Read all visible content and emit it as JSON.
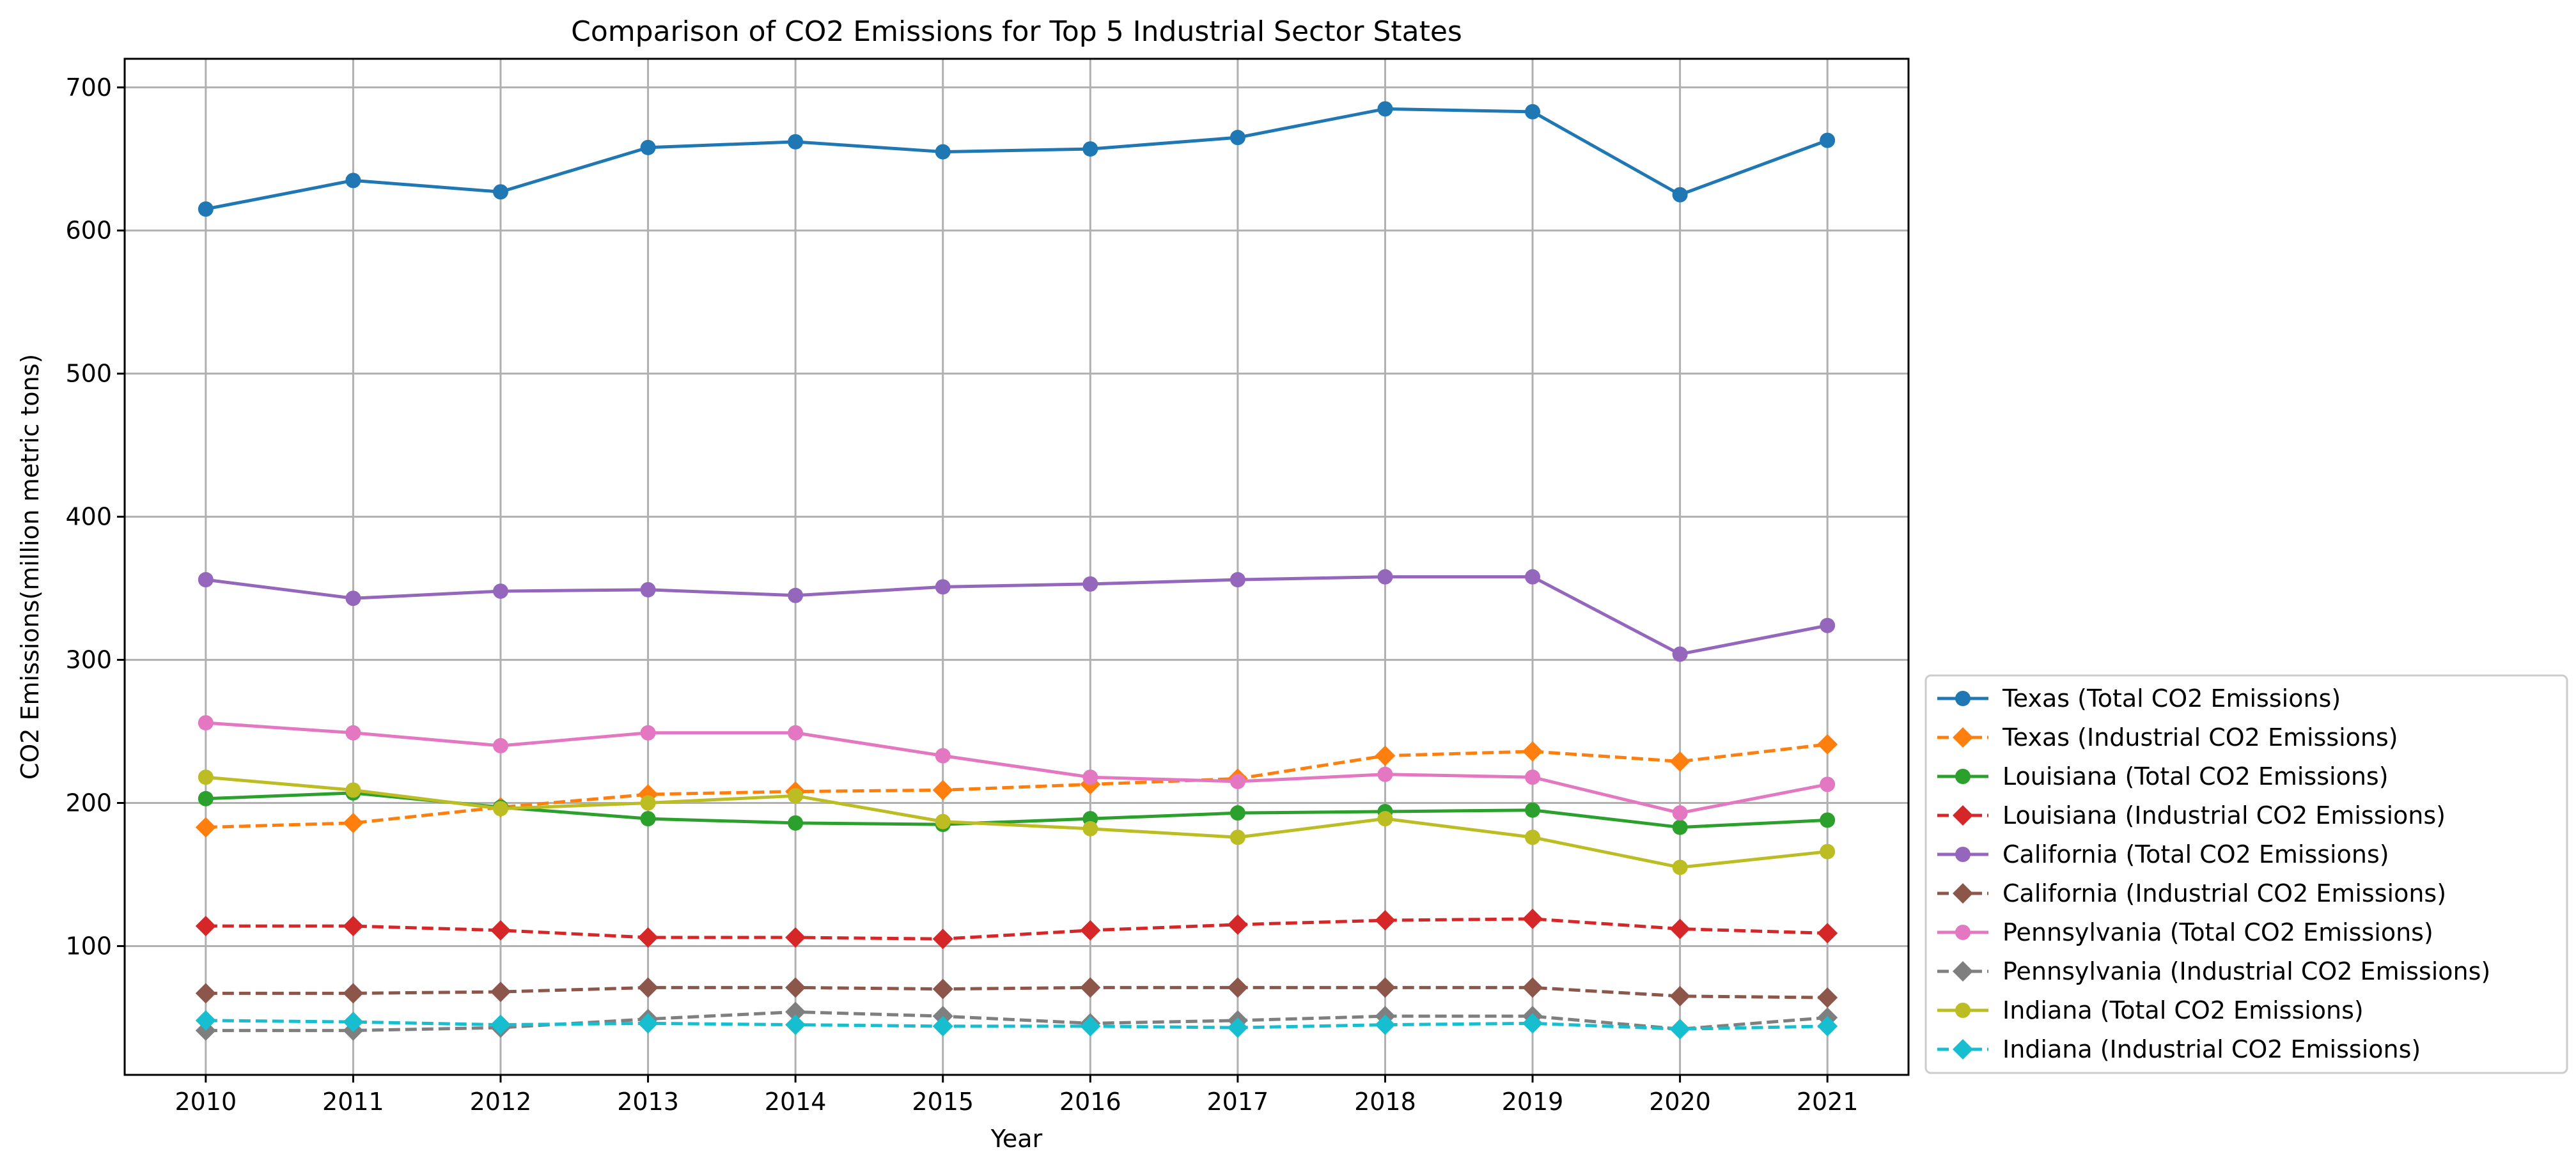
{
  "chart_data": {
    "type": "line",
    "title": "Comparison of CO2 Emissions for Top 5 Industrial Sector States",
    "xlabel": "Year",
    "ylabel": "CO2 Emissions(million metric tons)",
    "x": [
      2010,
      2011,
      2012,
      2013,
      2014,
      2015,
      2016,
      2017,
      2018,
      2019,
      2020,
      2021
    ],
    "xlim": [
      2009.45,
      2021.55
    ],
    "ylim": [
      10,
      720
    ],
    "yticks": [
      100,
      200,
      300,
      400,
      500,
      600,
      700
    ],
    "grid": true,
    "legend_position": "lower-right outside",
    "series": [
      {
        "name": "Texas (Total CO2 Emissions)",
        "color": "#1f77b4",
        "style": "solid",
        "marker": "circle",
        "values": [
          615,
          635,
          627,
          658,
          662,
          655,
          657,
          665,
          685,
          683,
          625,
          663
        ]
      },
      {
        "name": "Texas (Industrial CO2 Emissions)",
        "color": "#ff7f0e",
        "style": "dashed",
        "marker": "diamond",
        "values": [
          183,
          186,
          197,
          206,
          208,
          209,
          213,
          217,
          233,
          236,
          229,
          241
        ]
      },
      {
        "name": "Louisiana (Total CO2 Emissions)",
        "color": "#2ca02c",
        "style": "solid",
        "marker": "circle",
        "values": [
          203,
          207,
          197,
          189,
          186,
          185,
          189,
          193,
          194,
          195,
          183,
          188
        ]
      },
      {
        "name": "Louisiana (Industrial CO2 Emissions)",
        "color": "#d62728",
        "style": "dashed",
        "marker": "diamond",
        "values": [
          114,
          114,
          111,
          106,
          106,
          105,
          111,
          115,
          118,
          119,
          112,
          109
        ]
      },
      {
        "name": "California (Total CO2 Emissions)",
        "color": "#9467bd",
        "style": "solid",
        "marker": "circle",
        "values": [
          356,
          343,
          348,
          349,
          345,
          351,
          353,
          356,
          358,
          358,
          304,
          324
        ]
      },
      {
        "name": "California (Industrial CO2 Emissions)",
        "color": "#8c564b",
        "style": "dashed",
        "marker": "diamond",
        "values": [
          67,
          67,
          68,
          71,
          71,
          70,
          71,
          71,
          71,
          71,
          65,
          64
        ]
      },
      {
        "name": "Pennsylvania (Total CO2 Emissions)",
        "color": "#e377c2",
        "style": "solid",
        "marker": "circle",
        "values": [
          256,
          249,
          240,
          249,
          249,
          233,
          218,
          215,
          220,
          218,
          193,
          213
        ]
      },
      {
        "name": "Pennsylvania (Industrial CO2 Emissions)",
        "color": "#7f7f7f",
        "style": "dashed",
        "marker": "diamond",
        "values": [
          41,
          41,
          43,
          49,
          54,
          51,
          46,
          48,
          51,
          51,
          42,
          50
        ]
      },
      {
        "name": "Indiana (Total CO2 Emissions)",
        "color": "#bcbd22",
        "style": "solid",
        "marker": "circle",
        "values": [
          218,
          209,
          196,
          200,
          205,
          187,
          182,
          176,
          189,
          176,
          155,
          166
        ]
      },
      {
        "name": "Indiana (Industrial CO2 Emissions)",
        "color": "#17becf",
        "style": "dashed",
        "marker": "diamond",
        "values": [
          48,
          47,
          45,
          46,
          45,
          44,
          44,
          43,
          45,
          46,
          42,
          44
        ]
      }
    ]
  }
}
